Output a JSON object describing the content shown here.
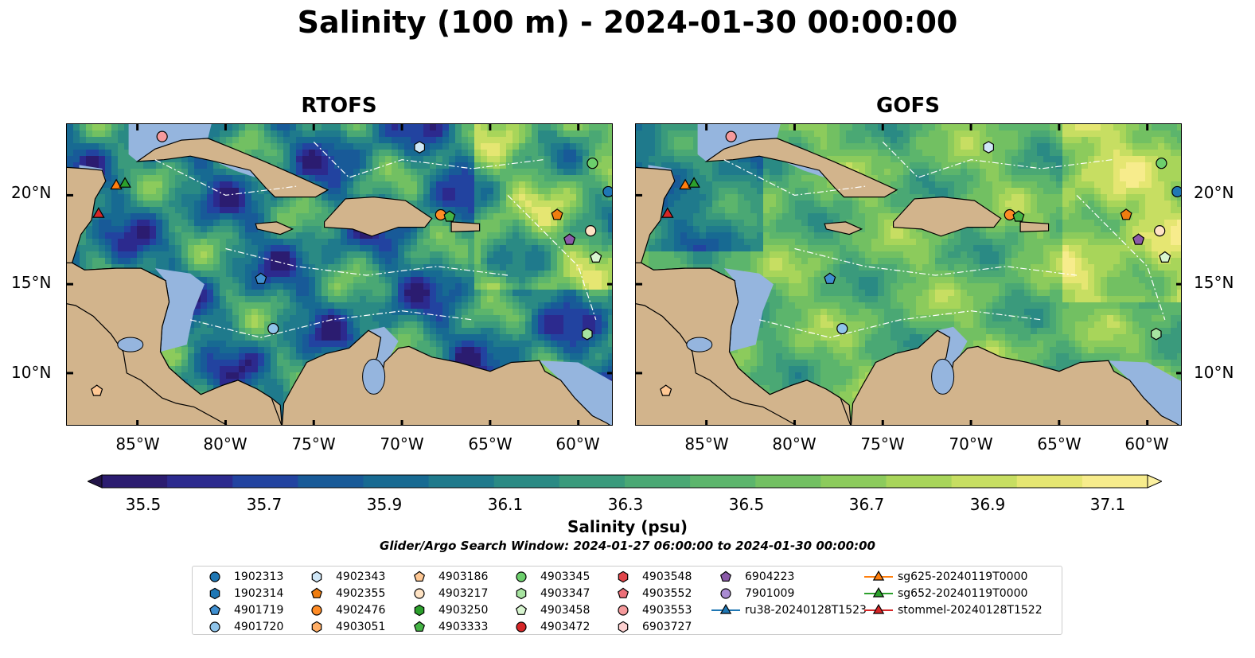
{
  "title": "Salinity (100 m) - 2024-01-30 00:00:00",
  "panels": [
    {
      "title": "RTOFS",
      "model": "rtofs"
    },
    {
      "title": "GOFS",
      "model": "gofs"
    }
  ],
  "map": {
    "lon_range": [
      -89,
      -58
    ],
    "lat_range": [
      7,
      24
    ],
    "lat_ticks": [
      "20°N",
      "15°N",
      "10°N"
    ],
    "lon_ticks": [
      "85°W",
      "80°W",
      "75°W",
      "70°W",
      "65°W",
      "60°W"
    ],
    "colors": {
      "land": "#d2b48c",
      "shallow_water": "#95b5de",
      "pacific_deep": "#2a1b6e"
    }
  },
  "colorbar": {
    "label": "Salinity (psu)",
    "min": 35.5,
    "max": 37.1,
    "ticks": [
      "35.5",
      "35.7",
      "35.9",
      "36.1",
      "36.3",
      "36.5",
      "36.7",
      "36.9",
      "37.1"
    ],
    "colors": [
      "#2b1c70",
      "#2c2a8e",
      "#2243a0",
      "#185a98",
      "#176a92",
      "#1f7a8c",
      "#2a8a84",
      "#3a9a7c",
      "#4aa874",
      "#5cb56c",
      "#72c062",
      "#8ccb5c",
      "#a8d55a",
      "#c7de62",
      "#e5e672",
      "#f7ec8c"
    ]
  },
  "search_window": "Glider/Argo Search Window: 2024-01-27 06:00:00 to 2024-01-30 00:00:00",
  "legend": [
    {
      "label": "1902313",
      "marker": "circle",
      "color": "#1f77b4"
    },
    {
      "label": "1902314",
      "marker": "hexagon",
      "color": "#1f77b4"
    },
    {
      "label": "4901719",
      "marker": "pentagon",
      "color": "#3f8fd0"
    },
    {
      "label": "4901720",
      "marker": "circle",
      "color": "#8fc4ea"
    },
    {
      "label": "4902343",
      "marker": "hexagon",
      "color": "#cfe6f6"
    },
    {
      "label": "4902355",
      "marker": "pentagon",
      "color": "#f07d0f"
    },
    {
      "label": "4902476",
      "marker": "circle",
      "color": "#ff8c26"
    },
    {
      "label": "4903051",
      "marker": "hexagon",
      "color": "#ffae66"
    },
    {
      "label": "4903186",
      "marker": "pentagon",
      "color": "#ffc894"
    },
    {
      "label": "4903217",
      "marker": "circle",
      "color": "#ffe3c4"
    },
    {
      "label": "4903250",
      "marker": "hexagon",
      "color": "#2ca02c"
    },
    {
      "label": "4903333",
      "marker": "pentagon",
      "color": "#45b445"
    },
    {
      "label": "4903345",
      "marker": "circle",
      "color": "#6ccf6c"
    },
    {
      "label": "4903347",
      "marker": "hexagon",
      "color": "#a7e4a0"
    },
    {
      "label": "4903458",
      "marker": "pentagon",
      "color": "#d8f5d0"
    },
    {
      "label": "4903472",
      "marker": "circle",
      "color": "#d62728"
    },
    {
      "label": "4903548",
      "marker": "hexagon",
      "color": "#e0454a"
    },
    {
      "label": "4903552",
      "marker": "pentagon",
      "color": "#ec6f78"
    },
    {
      "label": "4903553",
      "marker": "circle",
      "color": "#f59a9c"
    },
    {
      "label": "6903727",
      "marker": "hexagon",
      "color": "#fcd0d0"
    },
    {
      "label": "6904223",
      "marker": "pentagon",
      "color": "#8a5aa8"
    },
    {
      "label": "7901009",
      "marker": "circle",
      "color": "#a98bd2"
    },
    {
      "label": "ru38-20240128T1523",
      "marker": "triangle-line",
      "color": "#1f77b4"
    },
    {
      "label": "sg625-20240119T0000",
      "marker": "triangle-line",
      "color": "#ff7f0e"
    },
    {
      "label": "sg652-20240119T0000",
      "marker": "triangle-line",
      "color": "#2ca02c"
    },
    {
      "label": "stommel-20240128T1522",
      "marker": "triangle-line",
      "color": "#d62728"
    }
  ],
  "platforms": [
    {
      "id": "1902313",
      "lon": -58.3,
      "lat": 20.2
    },
    {
      "id": "4901719",
      "lon": -78.0,
      "lat": 15.3
    },
    {
      "id": "4901720",
      "lon": -77.3,
      "lat": 12.5
    },
    {
      "id": "4902343",
      "lon": -69.0,
      "lat": 22.7
    },
    {
      "id": "4902355",
      "lon": -61.2,
      "lat": 18.9
    },
    {
      "id": "4902476",
      "lon": -67.8,
      "lat": 18.9
    },
    {
      "id": "4903186",
      "lon": -87.3,
      "lat": 9.0
    },
    {
      "id": "4903217",
      "lon": -59.3,
      "lat": 18.0
    },
    {
      "id": "4903333",
      "lon": -67.3,
      "lat": 18.8
    },
    {
      "id": "4903345",
      "lon": -59.2,
      "lat": 21.8
    },
    {
      "id": "4903347",
      "lon": -59.5,
      "lat": 12.2
    },
    {
      "id": "4903458",
      "lon": -59.0,
      "lat": 16.5
    },
    {
      "id": "4903553",
      "lon": -83.6,
      "lat": 23.3
    },
    {
      "id": "6904223",
      "lon": -60.5,
      "lat": 17.5
    },
    {
      "id": "sg625-20240119T0000",
      "lon": -86.2,
      "lat": 20.6
    },
    {
      "id": "sg652-20240119T0000",
      "lon": -85.7,
      "lat": 20.7
    },
    {
      "id": "stommel-20240128T1522",
      "lon": -87.2,
      "lat": 19.0
    }
  ]
}
